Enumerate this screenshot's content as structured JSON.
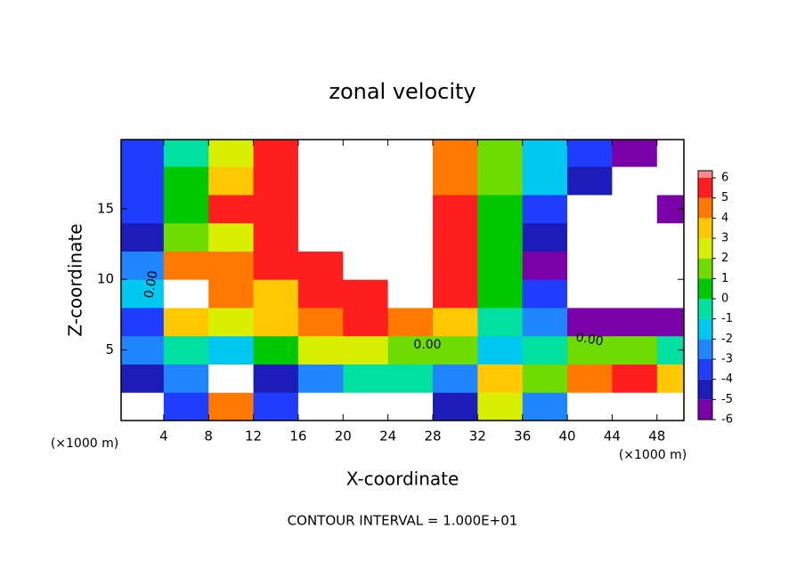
{
  "chart_data": {
    "type": "contour",
    "title": "zonal velocity",
    "x_label": "X-coordinate",
    "y_label": "Z-coordinate",
    "x_unit_label": "(×1000 m)",
    "footer": "CONTOUR INTERVAL = 1.000E+01",
    "contour_labels": [
      "0.00",
      "0.00",
      "0.00"
    ],
    "xlim": [
      0.2,
      50.4
    ],
    "ylim": [
      0,
      19.9
    ],
    "xticks": [
      4,
      8,
      12,
      16,
      20,
      24,
      28,
      32,
      36,
      40,
      44,
      48
    ],
    "yticks": [
      5,
      10,
      15
    ],
    "x": [
      2,
      6,
      10,
      14,
      18,
      22,
      26,
      30,
      34,
      38,
      42,
      46,
      50
    ],
    "y": [
      1,
      3,
      5,
      7,
      9,
      11,
      13,
      15,
      17,
      19
    ],
    "z": [
      [
        -8,
        -4,
        4,
        -4,
        -8,
        -8,
        -8,
        -5,
        2,
        -3,
        -8,
        -8,
        -7
      ],
      [
        -5,
        -3,
        -8,
        -5,
        -3,
        -1,
        -1,
        -3,
        3,
        1,
        4,
        5,
        3
      ],
      [
        -3,
        -1,
        -2,
        0,
        2,
        2,
        1,
        1,
        -2,
        -1,
        1,
        1,
        -1
      ],
      [
        -4,
        3,
        2,
        3,
        4,
        5,
        4,
        3,
        -1,
        -3,
        -6,
        -6,
        -6
      ],
      [
        -2,
        8,
        4,
        3,
        6,
        6,
        7,
        5,
        0,
        -4,
        -8,
        -8,
        -8
      ],
      [
        -3,
        4,
        4,
        6,
        5,
        8,
        8,
        6,
        0,
        -6,
        -8,
        -8,
        -8
      ],
      [
        -5,
        1,
        2,
        5,
        8,
        8,
        8,
        6,
        0,
        -5,
        -8,
        -8,
        -7
      ],
      [
        -4,
        0,
        5,
        6,
        8,
        8,
        8,
        5,
        0,
        -4,
        -8,
        -8,
        -6
      ],
      [
        -4,
        0,
        3,
        6,
        8,
        8,
        8,
        4,
        1,
        -2,
        -5,
        -8,
        -8
      ],
      [
        -4,
        -1,
        2,
        5,
        8,
        8,
        8,
        4,
        1,
        -2,
        -4,
        -6,
        -8
      ]
    ],
    "levels": [
      -6,
      -5,
      -4,
      -3,
      -2,
      -1,
      0,
      1,
      2,
      3,
      4,
      5,
      6
    ],
    "colors": [
      "#7a00a8",
      "#1c1cb8",
      "#1f3cff",
      "#1f86ff",
      "#00c8f0",
      "#00e0a0",
      "#00c800",
      "#6edc00",
      "#d8f000",
      "#ffc800",
      "#ff7800",
      "#ff1e1e"
    ],
    "top_color": "#ff8a8a"
  }
}
